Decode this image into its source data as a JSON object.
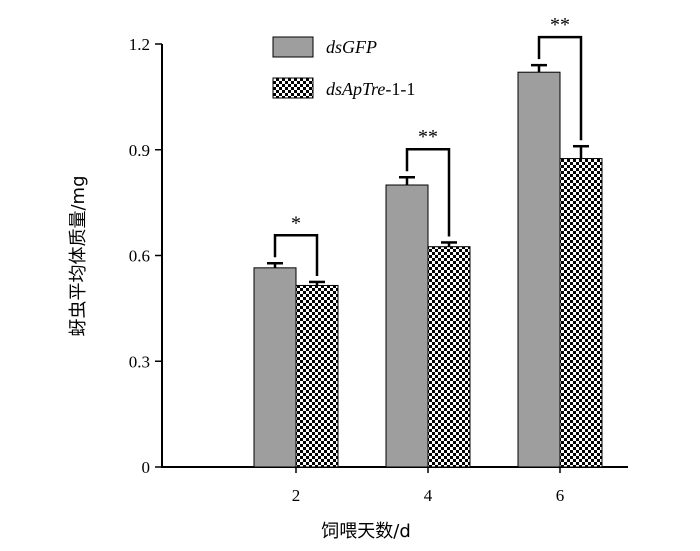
{
  "chart_data": {
    "type": "bar",
    "xlabel": "饲喂天数/d",
    "ylabel": "蚜虫平均体质量/mg",
    "categories": [
      "2",
      "4",
      "6"
    ],
    "ylim": [
      0,
      1.2
    ],
    "yticks": [
      "0",
      "0.3",
      "0.6",
      "0.9",
      "1.2"
    ],
    "series": [
      {
        "name": "dsGFP",
        "legend_italic": "dsGFP",
        "legend_suffix": "",
        "values": [
          0.565,
          0.8,
          1.12
        ],
        "errors": [
          0.013,
          0.022,
          0.02
        ],
        "color": "#9e9e9e",
        "pattern": "solid"
      },
      {
        "name": "dsApTre-1-1",
        "legend_italic": "dsApTre",
        "legend_suffix": "-1-1",
        "values": [
          0.515,
          0.625,
          0.875
        ],
        "errors": [
          0.01,
          0.012,
          0.035
        ],
        "color": "#000000",
        "pattern": "checker"
      }
    ],
    "significance": [
      "*",
      "**",
      "**"
    ],
    "legend_position": "top-left",
    "grid": false
  }
}
